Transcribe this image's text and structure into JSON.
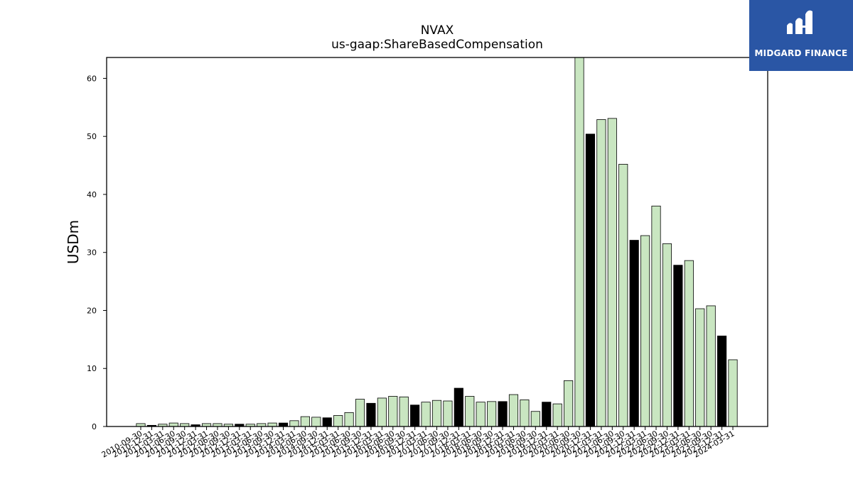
{
  "chart_data": {
    "type": "bar",
    "title": "NVAX",
    "subtitle": "us-gaap:ShareBasedCompensation",
    "xlabel": "",
    "ylabel": "USDm",
    "ylim": [
      0,
      63.6
    ],
    "yticks": [
      0,
      10,
      20,
      30,
      40,
      50,
      60
    ],
    "colors": {
      "quarter": "#c9e6c1",
      "annual": "#000000",
      "edge": "#000000"
    },
    "categories": [
      "2010-09-30",
      "2010-12-31",
      "2011-03-31",
      "2011-06-30",
      "2011-09-30",
      "2011-12-31",
      "2012-03-31",
      "2012-06-30",
      "2012-09-30",
      "2012-12-31",
      "2013-03-31",
      "2013-06-30",
      "2013-09-30",
      "2013-12-31",
      "2014-03-31",
      "2014-06-30",
      "2014-09-30",
      "2014-12-31",
      "2015-03-31",
      "2015-06-30",
      "2015-09-30",
      "2015-12-31",
      "2016-03-31",
      "2016-06-30",
      "2016-09-30",
      "2016-12-31",
      "2017-03-31",
      "2017-06-30",
      "2017-09-30",
      "2017-12-31",
      "2018-03-31",
      "2018-06-30",
      "2018-09-30",
      "2018-12-31",
      "2019-03-31",
      "2019-06-30",
      "2019-09-30",
      "2019-12-31",
      "2020-03-31",
      "2020-06-30",
      "2020-09-30",
      "2020-12-31",
      "2021-03-31",
      "2021-06-30",
      "2021-09-30",
      "2021-12-31",
      "2022-03-31",
      "2022-06-30",
      "2022-09-30",
      "2022-12-31",
      "2023-03-31",
      "2023-06-30",
      "2023-09-30",
      "2023-12-31",
      "2024-03-31"
    ],
    "values": [
      0.5,
      0.2,
      0.4,
      0.6,
      0.5,
      0.3,
      0.5,
      0.5,
      0.4,
      0.4,
      0.4,
      0.5,
      0.6,
      0.6,
      1.0,
      1.7,
      1.6,
      1.5,
      1.9,
      2.4,
      4.7,
      4.0,
      4.9,
      5.2,
      5.1,
      3.7,
      4.2,
      4.5,
      4.4,
      6.6,
      5.2,
      4.2,
      4.3,
      4.3,
      5.5,
      4.6,
      2.6,
      4.2,
      3.9,
      7.9,
      63.6,
      50.4,
      52.9,
      53.1,
      45.2,
      32.1,
      32.9,
      38.0,
      31.5,
      27.8,
      28.6,
      20.3,
      20.8,
      15.6,
      11.5
    ],
    "annual": [
      false,
      true,
      false,
      false,
      false,
      true,
      false,
      false,
      false,
      true,
      false,
      false,
      false,
      true,
      false,
      false,
      false,
      true,
      false,
      false,
      false,
      true,
      false,
      false,
      false,
      true,
      false,
      false,
      false,
      true,
      false,
      false,
      false,
      true,
      false,
      false,
      false,
      true,
      false,
      false,
      false,
      true,
      false,
      false,
      false,
      true,
      false,
      false,
      false,
      true,
      false,
      false,
      false,
      true,
      false
    ]
  },
  "logo": {
    "text": "MIDGARD FINANCE"
  }
}
